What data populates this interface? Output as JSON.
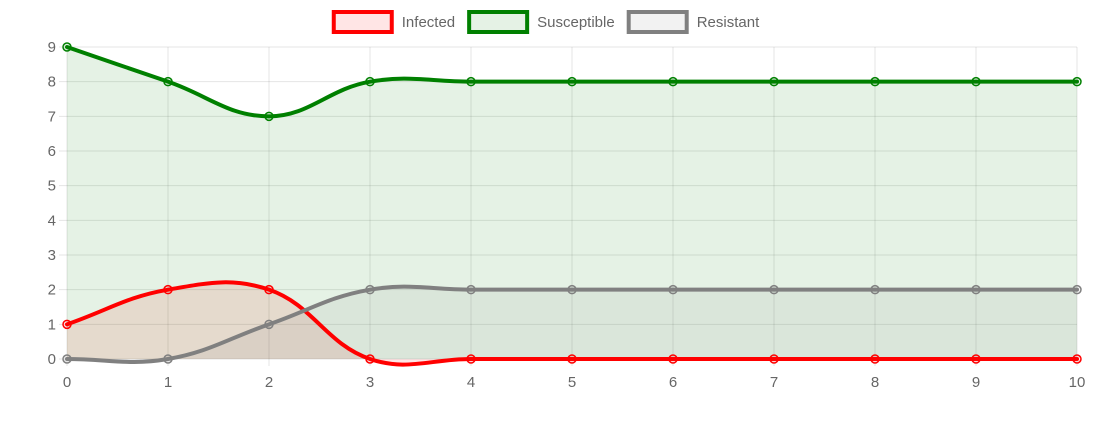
{
  "chart_data": {
    "type": "line",
    "x": [
      0,
      1,
      2,
      3,
      4,
      5,
      6,
      7,
      8,
      9,
      10
    ],
    "series": [
      {
        "name": "Infected",
        "values": [
          1,
          2,
          2,
          0,
          0,
          0,
          0,
          0,
          0,
          0,
          0
        ],
        "color": "#ff0000",
        "fill": "rgba(255,0,0,0.1)"
      },
      {
        "name": "Susceptible",
        "values": [
          9,
          8,
          7,
          8,
          8,
          8,
          8,
          8,
          8,
          8,
          8
        ],
        "color": "#008000",
        "fill": "rgba(0,128,0,0.1)"
      },
      {
        "name": "Resistant",
        "values": [
          0,
          0,
          1,
          2,
          2,
          2,
          2,
          2,
          2,
          2,
          2
        ],
        "color": "#808080",
        "fill": "rgba(128,128,128,0.1)"
      }
    ],
    "xlim": [
      0,
      10
    ],
    "ylim": [
      0,
      9
    ],
    "xticks": [
      "0",
      "1",
      "2",
      "3",
      "4",
      "5",
      "6",
      "7",
      "8",
      "9",
      "10"
    ],
    "yticks": [
      "0",
      "1",
      "2",
      "3",
      "4",
      "5",
      "6",
      "7",
      "8",
      "9"
    ],
    "grid": true,
    "legend_position": "top-center",
    "curve": "smooth"
  }
}
